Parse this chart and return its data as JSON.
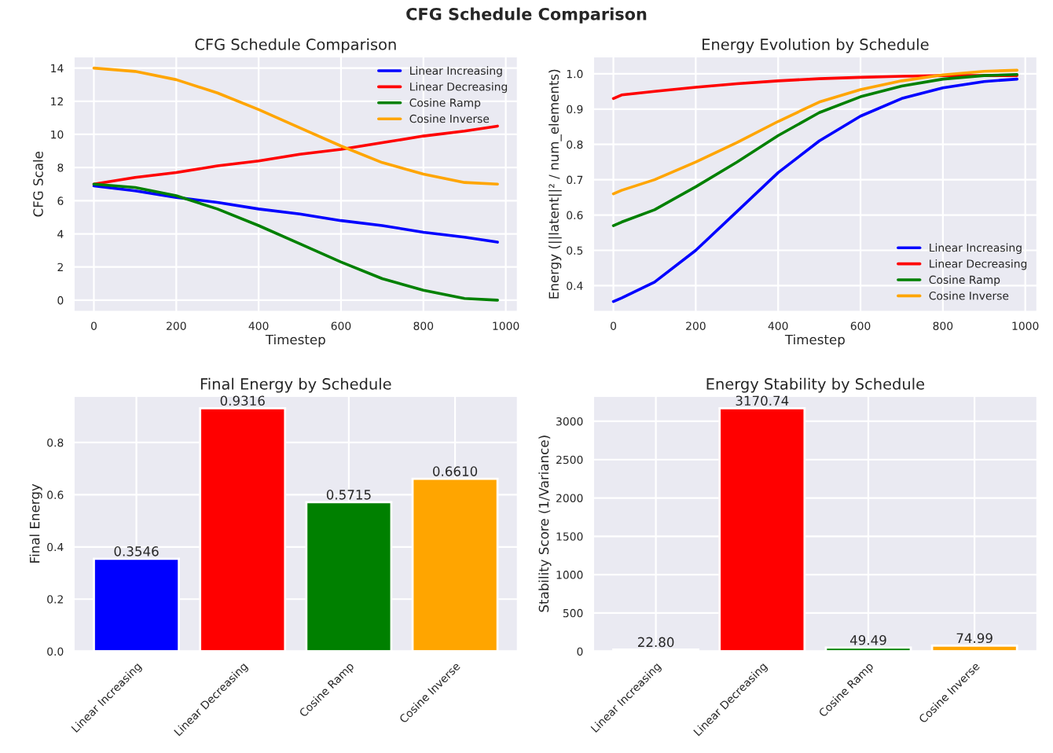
{
  "chart_data": [
    {
      "type": "line",
      "title": "CFG Schedule Comparison",
      "annotations": [
        "CFG Schedule Comparison"
      ],
      "xlabel": "Timestep",
      "ylabel": "CFG Scale",
      "x": [
        0,
        100,
        200,
        300,
        400,
        500,
        600,
        700,
        800,
        900,
        980
      ],
      "xlim": [
        -49,
        1029
      ],
      "xticks": [
        0,
        200,
        400,
        600,
        800,
        1000
      ],
      "ylim": [
        -0.7,
        14.7
      ],
      "yticks": [
        0,
        2,
        4,
        6,
        8,
        10,
        12,
        14
      ],
      "grid": true,
      "legend": "top right",
      "series": [
        {
          "name": "Linear Increasing",
          "color": "#0000ff",
          "values": [
            6.9,
            6.6,
            6.2,
            5.9,
            5.5,
            5.2,
            4.8,
            4.5,
            4.1,
            3.8,
            3.5
          ]
        },
        {
          "name": "Linear Decreasing",
          "color": "#ff0000",
          "values": [
            7.0,
            7.4,
            7.7,
            8.1,
            8.4,
            8.8,
            9.1,
            9.5,
            9.9,
            10.2,
            10.5
          ]
        },
        {
          "name": "Cosine Ramp",
          "color": "#008000",
          "values": [
            7.0,
            6.8,
            6.3,
            5.5,
            4.5,
            3.4,
            2.3,
            1.3,
            0.6,
            0.1,
            0.0
          ]
        },
        {
          "name": "Cosine Inverse",
          "color": "#ffa500",
          "values": [
            14.0,
            13.8,
            13.3,
            12.5,
            11.5,
            10.4,
            9.3,
            8.3,
            7.6,
            7.1,
            7.0
          ]
        }
      ]
    },
    {
      "type": "line",
      "title": "Energy Evolution by Schedule",
      "xlabel": "Timestep",
      "ylabel": "Energy (||latent||² / num_elements)",
      "x": [
        0,
        20,
        100,
        200,
        300,
        400,
        500,
        600,
        700,
        800,
        900,
        980
      ],
      "xlim": [
        -49,
        1029
      ],
      "xticks": [
        0,
        200,
        400,
        600,
        800,
        1000
      ],
      "ylim": [
        0.326,
        1.049
      ],
      "yticks": [
        0.4,
        0.5,
        0.6,
        0.7,
        0.8,
        0.9,
        {
          "value": 1,
          "label": "1.0"
        }
      ],
      "grid": true,
      "legend": "bottom right",
      "series": [
        {
          "name": "Linear Increasing",
          "color": "#0000ff",
          "values": [
            0.355,
            0.365,
            0.41,
            0.5,
            0.61,
            0.72,
            0.81,
            0.88,
            0.93,
            0.96,
            0.978,
            0.985
          ]
        },
        {
          "name": "Linear Decreasing",
          "color": "#ff0000",
          "values": [
            0.93,
            0.94,
            0.95,
            0.962,
            0.972,
            0.98,
            0.986,
            0.99,
            0.993,
            0.995,
            0.995,
            0.995
          ]
        },
        {
          "name": "Cosine Ramp",
          "color": "#008000",
          "values": [
            0.57,
            0.58,
            0.615,
            0.68,
            0.75,
            0.825,
            0.89,
            0.935,
            0.965,
            0.985,
            0.995,
            0.998
          ]
        },
        {
          "name": "Cosine Inverse",
          "color": "#ffa500",
          "values": [
            0.66,
            0.67,
            0.7,
            0.75,
            0.805,
            0.865,
            0.92,
            0.955,
            0.98,
            0.997,
            1.007,
            1.01
          ]
        }
      ]
    },
    {
      "type": "bar",
      "title": "Final Energy by Schedule",
      "ylabel": "Final Energy",
      "categories": [
        "Linear Increasing",
        "Linear Decreasing",
        "Cosine Ramp",
        "Cosine Inverse"
      ],
      "values": [
        0.3546,
        0.9316,
        0.5715,
        0.661
      ],
      "value_labels": [
        "0.3546",
        "0.9316",
        "0.5715",
        "0.6610"
      ],
      "colors": [
        "#0000ff",
        "#ff0000",
        "#008000",
        "#ffa500"
      ],
      "ylim": [
        0,
        0.978
      ],
      "yticks": [
        {
          "value": 0,
          "label": "0.0"
        },
        0.2,
        0.4,
        0.6,
        0.8
      ],
      "grid": true
    },
    {
      "type": "bar",
      "title": "Energy Stability by Schedule",
      "ylabel": "Stability Score (1/Variance)",
      "categories": [
        "Linear Increasing",
        "Linear Decreasing",
        "Cosine Ramp",
        "Cosine Inverse"
      ],
      "values": [
        22.8,
        3170.74,
        49.49,
        74.99
      ],
      "value_labels": [
        "22.80",
        "3170.74",
        "49.49",
        "74.99"
      ],
      "colors": [
        "#0000ff",
        "#ff0000",
        "#008000",
        "#ffa500"
      ],
      "ylim": [
        0,
        3329
      ],
      "yticks": [
        0,
        500,
        1000,
        1500,
        2000,
        2500,
        3000
      ],
      "grid": true
    }
  ]
}
